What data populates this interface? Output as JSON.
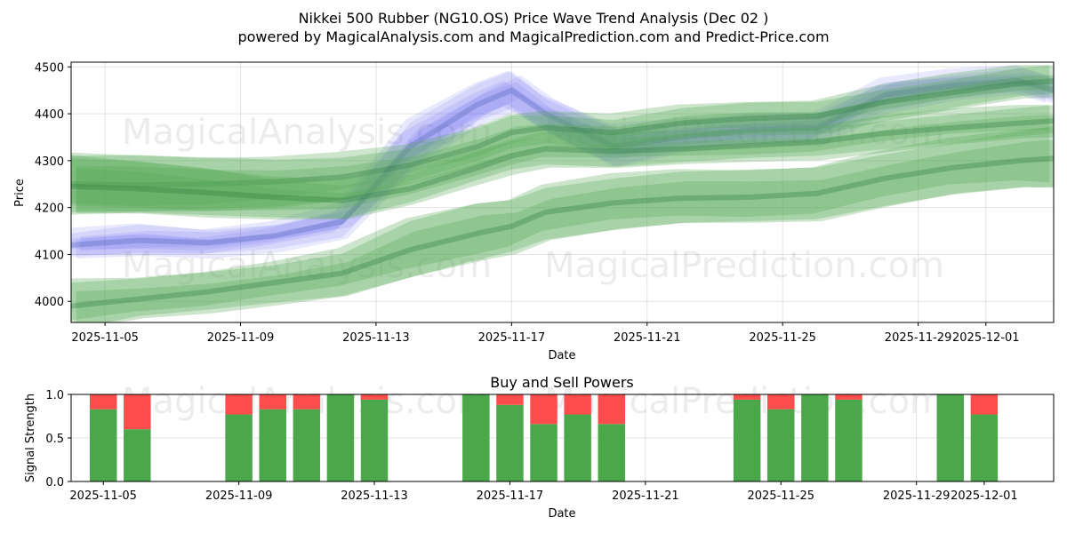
{
  "chart_data": [
    {
      "type": "area",
      "title": "Nikkei 500 Rubber (NG10.OS) Price Wave Trend Analysis (Dec 02 )",
      "subtitle": "powered by MagicalAnalysis.com and MagicalPrediction.com and Predict-Price.com",
      "xlabel": "Date",
      "ylabel": "Price",
      "xlim": [
        "2025-11-04",
        "2025-12-03"
      ],
      "ylim": [
        3955,
        4510
      ],
      "xticks": [
        "2025-11-05",
        "2025-11-09",
        "2025-11-13",
        "2025-11-17",
        "2025-11-21",
        "2025-11-25",
        "2025-11-29",
        "2025-12-01"
      ],
      "yticks": [
        4000,
        4100,
        4200,
        4300,
        4400,
        4500
      ],
      "grid": true,
      "watermarks": [
        "MagicalAnalysis.com",
        "MagicalPrediction.com",
        "MagicalAnalysis.com",
        "MagicalPrediction.com"
      ],
      "x": [
        "11-04",
        "11-06",
        "11-08",
        "11-10",
        "11-12",
        "11-14",
        "11-16",
        "11-17",
        "11-18",
        "11-20",
        "11-22",
        "11-24",
        "11-26",
        "11-28",
        "11-30",
        "12-02",
        "12-03"
      ],
      "series": [
        {
          "name": "blue wave",
          "color": "#6666ee",
          "center": [
            4120,
            4130,
            4125,
            4140,
            4170,
            4330,
            4420,
            4450,
            4400,
            4330,
            4350,
            4365,
            4370,
            4440,
            4460,
            4470,
            4450
          ],
          "halfwidth": [
            25,
            30,
            25,
            25,
            30,
            50,
            40,
            40,
            35,
            40,
            30,
            30,
            30,
            30,
            25,
            25,
            25
          ]
        },
        {
          "name": "green wave upper",
          "color": "#55aa55",
          "center": [
            4250,
            4248,
            4250,
            4255,
            4265,
            4290,
            4330,
            4360,
            4370,
            4360,
            4380,
            4390,
            4395,
            4425,
            4445,
            4465,
            4470
          ],
          "halfwidth": [
            60,
            60,
            55,
            50,
            45,
            35,
            35,
            35,
            30,
            30,
            30,
            30,
            30,
            30,
            30,
            30,
            30
          ]
        },
        {
          "name": "green wave middle",
          "color": "#55aa55",
          "center": [
            4245,
            4240,
            4232,
            4222,
            4215,
            4240,
            4285,
            4310,
            4325,
            4320,
            4325,
            4332,
            4340,
            4358,
            4370,
            4380,
            4385
          ],
          "halfwidth": [
            60,
            55,
            50,
            40,
            35,
            30,
            30,
            30,
            30,
            30,
            30,
            30,
            30,
            30,
            30,
            30,
            30
          ]
        },
        {
          "name": "green wave lower",
          "color": "#55aa55",
          "center": [
            3990,
            4005,
            4020,
            4040,
            4060,
            4110,
            4145,
            4160,
            4190,
            4210,
            4220,
            4222,
            4230,
            4262,
            4285,
            4300,
            4305
          ],
          "halfwidth": [
            50,
            40,
            40,
            40,
            45,
            60,
            60,
            55,
            55,
            55,
            55,
            55,
            55,
            55,
            55,
            60,
            65
          ]
        }
      ]
    },
    {
      "type": "bar",
      "title": "Buy and Sell Powers",
      "xlabel": "Date",
      "ylabel": "Signal Strength",
      "ylim": [
        0,
        1.0
      ],
      "yticks": [
        "0.0",
        "0.5",
        "1.0"
      ],
      "xticks": [
        "2025-11-05",
        "2025-11-09",
        "2025-11-13",
        "2025-11-17",
        "2025-11-21",
        "2025-11-25",
        "2025-11-29",
        "2025-12-01"
      ],
      "watermarks": [
        "MagicalAnalysis.com",
        "MagicalPrediction.com"
      ],
      "categories": [
        "2025-11-05",
        "2025-11-06",
        "2025-11-09",
        "2025-11-10",
        "2025-11-11",
        "2025-11-12",
        "2025-11-13",
        "2025-11-16",
        "2025-11-17",
        "2025-11-18",
        "2025-11-19",
        "2025-11-20",
        "2025-11-24",
        "2025-11-25",
        "2025-11-26",
        "2025-11-27",
        "2025-11-30",
        "2025-12-01"
      ],
      "series": [
        {
          "name": "Buy",
          "color": "#4aa84a",
          "values": [
            0.83,
            0.6,
            0.77,
            0.83,
            0.83,
            1.0,
            0.94,
            1.0,
            0.88,
            0.66,
            0.77,
            0.66,
            0.94,
            0.83,
            1.0,
            0.94,
            1.0,
            0.77
          ]
        },
        {
          "name": "Sell",
          "color": "#ff4c4c",
          "values": [
            0.17,
            0.4,
            0.23,
            0.17,
            0.17,
            0.0,
            0.06,
            0.0,
            0.12,
            0.34,
            0.23,
            0.34,
            0.06,
            0.17,
            0.0,
            0.06,
            0.0,
            0.23
          ]
        }
      ]
    }
  ]
}
